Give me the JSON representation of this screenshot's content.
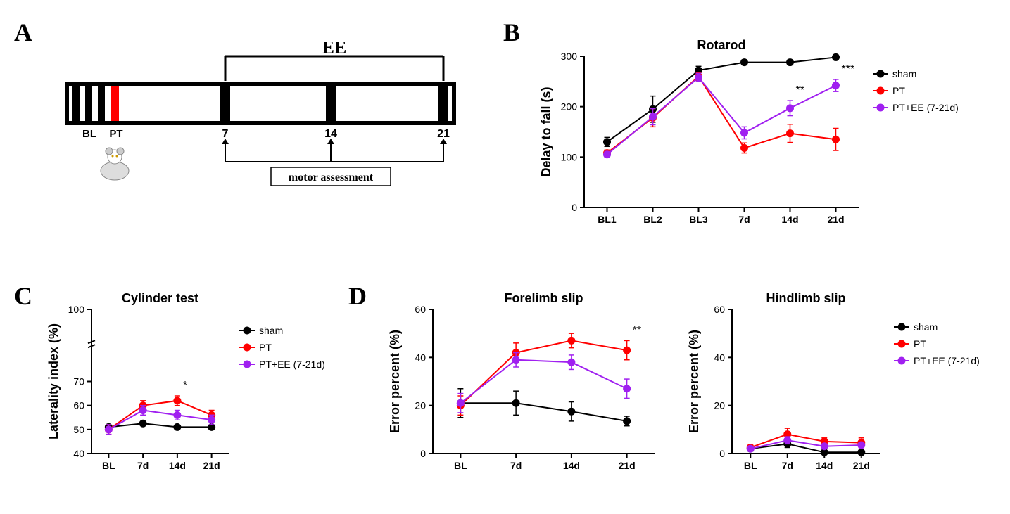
{
  "labels": {
    "A": "A",
    "B": "B",
    "C": "C",
    "D": "D"
  },
  "panelA": {
    "ee_label": "EE",
    "ticks": [
      "BL",
      "PT",
      "7",
      "14",
      "21"
    ],
    "motor_box": "motor assessment",
    "bar_fill": "#000000",
    "pt_fill": "#ff0000",
    "frame_stroke": "#000000"
  },
  "legend": {
    "items": [
      {
        "label": "sham",
        "color": "#000000"
      },
      {
        "label": "PT",
        "color": "#ff0000"
      },
      {
        "label": "PT+EE (7-21d)",
        "color": "#a020f0"
      }
    ]
  },
  "panelB": {
    "title": "Rotarod",
    "ylabel": "Delay to fall (s)",
    "ylim": [
      0,
      300
    ],
    "ytick_step": 100,
    "x_categories": [
      "BL1",
      "BL2",
      "BL3",
      "7d",
      "14d",
      "21d"
    ],
    "series": {
      "sham": [
        130,
        195,
        272,
        288,
        288,
        298
      ],
      "PT": [
        108,
        178,
        260,
        118,
        147,
        135
      ],
      "PTEE": [
        105,
        180,
        258,
        148,
        197,
        242
      ]
    },
    "err": {
      "sham": [
        9,
        26,
        8,
        5,
        5,
        5
      ],
      "PT": [
        6,
        18,
        8,
        10,
        18,
        22
      ],
      "PTEE": [
        6,
        16,
        8,
        12,
        15,
        12
      ]
    },
    "sig": [
      {
        "x": 4,
        "text": "**"
      },
      {
        "x": 5,
        "text": "***"
      }
    ],
    "marker_size": 5,
    "line_width": 2,
    "title_fontsize": 18,
    "label_fontsize": 18,
    "tick_fontsize": 14
  },
  "panelC": {
    "title": "Cylinder test",
    "ylabel": "Laterality index (%)",
    "ylim": [
      40,
      100
    ],
    "yticks": [
      40,
      50,
      60,
      70,
      100
    ],
    "x_categories": [
      "BL",
      "7d",
      "14d",
      "21d"
    ],
    "series": {
      "sham": [
        51,
        52.5,
        51,
        51
      ],
      "PT": [
        50,
        60,
        62,
        56
      ],
      "PTEE": [
        50,
        58,
        56,
        54
      ]
    },
    "err": {
      "sham": [
        0,
        0,
        0,
        0
      ],
      "PT": [
        2,
        2,
        2,
        2
      ],
      "PTEE": [
        2,
        2,
        2,
        2
      ]
    },
    "sig": [
      {
        "x": 2,
        "text": "*"
      }
    ],
    "break_between": [
      70,
      100
    ]
  },
  "panelD_forelimb": {
    "title": "Forelimb slip",
    "ylabel": "Error percent (%)",
    "ylim": [
      0,
      60
    ],
    "ytick_step": 20,
    "x_categories": [
      "BL",
      "7d",
      "14d",
      "21d"
    ],
    "series": {
      "sham": [
        21,
        21,
        17.5,
        13.5
      ],
      "PT": [
        20,
        42,
        47,
        43
      ],
      "PTEE": [
        21,
        39,
        38,
        27
      ]
    },
    "err": {
      "sham": [
        6,
        5,
        4,
        2
      ],
      "PT": [
        4,
        4,
        3,
        4
      ],
      "PTEE": [
        4,
        3,
        3,
        4
      ]
    },
    "sig": [
      {
        "x": 3,
        "text": "**"
      }
    ]
  },
  "panelD_hindlimb": {
    "title": "Hindlimb slip",
    "ylabel": "Error percent (%)",
    "ylim": [
      0,
      60
    ],
    "ytick_step": 20,
    "x_categories": [
      "BL",
      "7d",
      "14d",
      "21d"
    ],
    "series": {
      "sham": [
        2,
        4,
        0.5,
        0.5
      ],
      "PT": [
        2.5,
        8,
        5,
        4.5
      ],
      "PTEE": [
        2,
        5.5,
        3,
        3.5
      ]
    },
    "err": {
      "sham": [
        1,
        1.5,
        0.5,
        0.5
      ],
      "PT": [
        1,
        2.5,
        1.5,
        2
      ],
      "PTEE": [
        1,
        1.5,
        1,
        1
      ]
    },
    "sig": []
  },
  "colors": {
    "sham": "#000000",
    "PT": "#ff0000",
    "PTEE": "#a020f0",
    "axis": "#000000",
    "bg": "#ffffff"
  }
}
